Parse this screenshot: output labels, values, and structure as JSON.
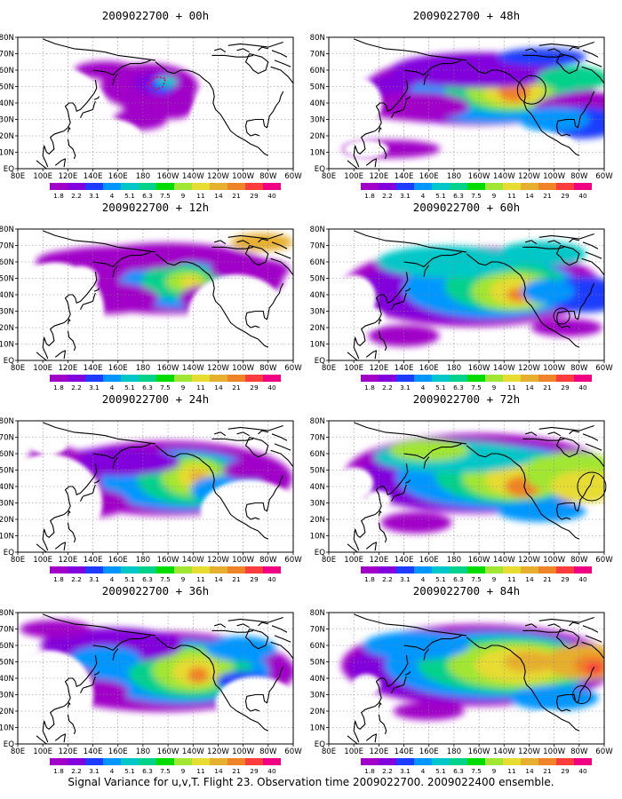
{
  "caption": "Signal Variance for u,v,T. Flight 23. Observation time 2009022700. 2009022400 ensemble.",
  "colorbar": {
    "labels": [
      "1.8",
      "2.2",
      "3.1",
      "4",
      "5.1",
      "6.3",
      "7.5",
      "9",
      "11",
      "14",
      "21",
      "29",
      "40"
    ],
    "colors": [
      "#a000c8",
      "#8200dc",
      "#1e3cff",
      "#0096ff",
      "#00c8c8",
      "#00d28c",
      "#00dc00",
      "#a0e632",
      "#e6dc32",
      "#e6af2d",
      "#f08228",
      "#fa3c3c",
      "#f00082"
    ]
  },
  "axes": {
    "lon_labels": [
      "80E",
      "100E",
      "120E",
      "140E",
      "160E",
      "180",
      "160W",
      "140W",
      "120W",
      "100W",
      "80W",
      "60W"
    ],
    "lat_labels": [
      "80N",
      "70N",
      "60N",
      "50N",
      "40N",
      "30N",
      "20N",
      "10N",
      "EQ"
    ]
  },
  "panels": [
    {
      "title": "2009022700 + 00h",
      "hours": 0
    },
    {
      "title": "2009022700 + 48h",
      "hours": 48
    },
    {
      "title": "2009022700 + 12h",
      "hours": 12
    },
    {
      "title": "2009022700 + 60h",
      "hours": 60
    },
    {
      "title": "2009022700 + 24h",
      "hours": 24
    },
    {
      "title": "2009022700 + 72h",
      "hours": 72
    },
    {
      "title": "2009022700 + 36h",
      "hours": 36
    },
    {
      "title": "2009022700 + 84h",
      "hours": 84
    }
  ]
}
